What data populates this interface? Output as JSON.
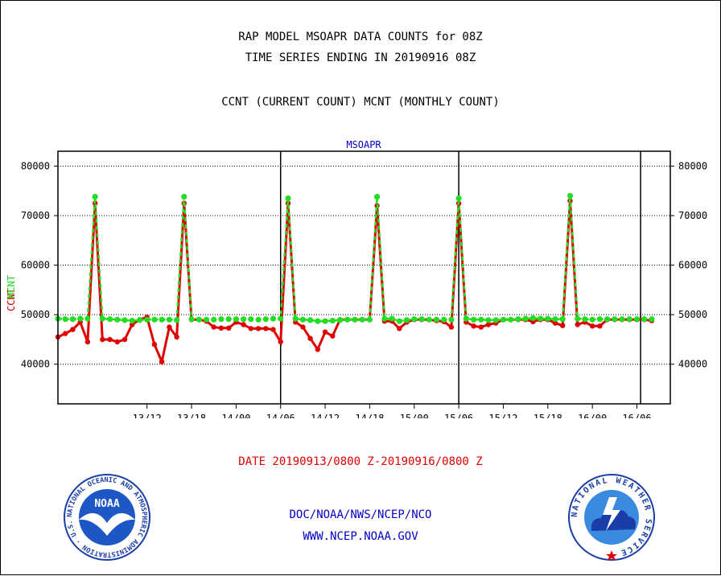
{
  "header": {
    "title_line1": "RAP MODEL MSOAPR DATA COUNTS for 08Z",
    "title_line2": "TIME SERIES ENDING IN 20190916 08Z",
    "subtitle": "CCNT (CURRENT COUNT) MCNT (MONTHLY COUNT)"
  },
  "footer": {
    "date_range": "DATE 20190913/0800 Z-20190916/0800 Z",
    "org": "DOC/NOAA/NWS/NCEP/NCO",
    "url": "WWW.NCEP.NOAA.GOV"
  },
  "logos": {
    "noaa_text": "NOAA",
    "noaa_ring": "NATIONAL OCEANIC AND ATMOSPHERIC ADMINISTRATION · U.S. DEPARTMENT OF COMMERCE ·",
    "nws_ring": "NATIONAL WEATHER SERVICE"
  },
  "colors": {
    "ccnt": "#e00000",
    "mcnt": "#22dd22",
    "accent_blue": "#0000c8"
  },
  "chart_data": {
    "type": "line",
    "title": "MSOAPR",
    "ylabel_left": [
      "CCNT",
      "MCNT"
    ],
    "ylim": [
      32000,
      83000
    ],
    "yticks": [
      40000,
      50000,
      60000,
      70000,
      80000
    ],
    "ytick_labels": [
      "40000",
      "50000",
      "60000",
      "70000",
      "80000"
    ],
    "xlim": [
      -8,
      74.5
    ],
    "xticks": [
      4,
      10,
      16,
      22,
      28,
      34,
      40,
      46,
      52,
      58,
      64,
      70
    ],
    "xtick_labels": [
      "13/12",
      "13/18",
      "14/00",
      "14/06",
      "14/12",
      "14/18",
      "15/00",
      "15/06",
      "15/12",
      "15/18",
      "16/00",
      "16/06"
    ],
    "x_unit": "hours after 13/08",
    "day_dividers": [
      22,
      46,
      70.5
    ],
    "grid": true,
    "series": [
      {
        "name": "CCNT",
        "color": "#e00000",
        "x": [
          -8,
          -7,
          -6,
          -5,
          -4,
          -3,
          -2,
          -1,
          0,
          1,
          2,
          3,
          4,
          5,
          6,
          7,
          8,
          9,
          10,
          11,
          12,
          13,
          14,
          15,
          16,
          17,
          18,
          19,
          20,
          21,
          22,
          23,
          24,
          25,
          26,
          27,
          28,
          29,
          30,
          31,
          32,
          33,
          34,
          35,
          36,
          37,
          38,
          39,
          40,
          41,
          42,
          43,
          44,
          45,
          46,
          47,
          48,
          49,
          50,
          51,
          52,
          53,
          54,
          55,
          56,
          57,
          58,
          59,
          60,
          61,
          62,
          63,
          64,
          65,
          66,
          67,
          68,
          69,
          70,
          71,
          72
        ],
        "values": [
          45500,
          46200,
          47000,
          48500,
          44500,
          72500,
          45000,
          45000,
          44500,
          45000,
          48000,
          49000,
          49500,
          44000,
          40500,
          47500,
          45500,
          72500,
          49000,
          49000,
          48700,
          47500,
          47300,
          47300,
          48500,
          48000,
          47200,
          47200,
          47200,
          47000,
          44500,
          72500,
          48500,
          47500,
          45200,
          43000,
          46500,
          45700,
          49000,
          49000,
          49000,
          49000,
          49000,
          72000,
          48700,
          48700,
          47200,
          48500,
          49000,
          49000,
          49000,
          48800,
          48600,
          47500,
          72500,
          48500,
          47700,
          47500,
          48000,
          48300,
          49000,
          49000,
          49000,
          49000,
          48600,
          49000,
          49000,
          48300,
          47800,
          73000,
          48000,
          48500,
          47700,
          47700,
          49000,
          49000,
          49000,
          49000,
          49000,
          49000,
          48800
        ]
      },
      {
        "name": "MCNT",
        "color": "#22dd22",
        "x": [
          -8,
          -7,
          -6,
          -5,
          -4,
          -3,
          -2,
          -1,
          0,
          1,
          2,
          3,
          4,
          5,
          6,
          7,
          8,
          9,
          10,
          11,
          12,
          13,
          14,
          15,
          16,
          17,
          18,
          19,
          20,
          21,
          22,
          23,
          24,
          25,
          26,
          27,
          28,
          29,
          30,
          31,
          32,
          33,
          34,
          35,
          36,
          37,
          38,
          39,
          40,
          41,
          42,
          43,
          44,
          45,
          46,
          47,
          48,
          49,
          50,
          51,
          52,
          53,
          54,
          55,
          56,
          57,
          58,
          59,
          60,
          61,
          62,
          63,
          64,
          65,
          66,
          67,
          68,
          69,
          70,
          71,
          72
        ],
        "values": [
          49200,
          49100,
          49100,
          49200,
          49200,
          73800,
          49200,
          49100,
          49000,
          48900,
          48800,
          48900,
          49000,
          49000,
          49000,
          49000,
          48900,
          73800,
          49100,
          49000,
          49000,
          49000,
          49100,
          49100,
          49100,
          49100,
          49100,
          49000,
          49100,
          49200,
          49200,
          73500,
          49200,
          49000,
          48900,
          48700,
          48700,
          48800,
          48900,
          49000,
          49000,
          49000,
          49000,
          73800,
          49200,
          49200,
          48700,
          48900,
          49100,
          49100,
          49000,
          49000,
          49000,
          49000,
          73500,
          49200,
          49000,
          49000,
          48900,
          48900,
          49000,
          49000,
          49100,
          49200,
          49300,
          49200,
          49200,
          49100,
          49100,
          74000,
          49200,
          49100,
          49000,
          49100,
          49100,
          49100,
          49100,
          49100,
          49100,
          49100,
          49100
        ]
      }
    ]
  }
}
